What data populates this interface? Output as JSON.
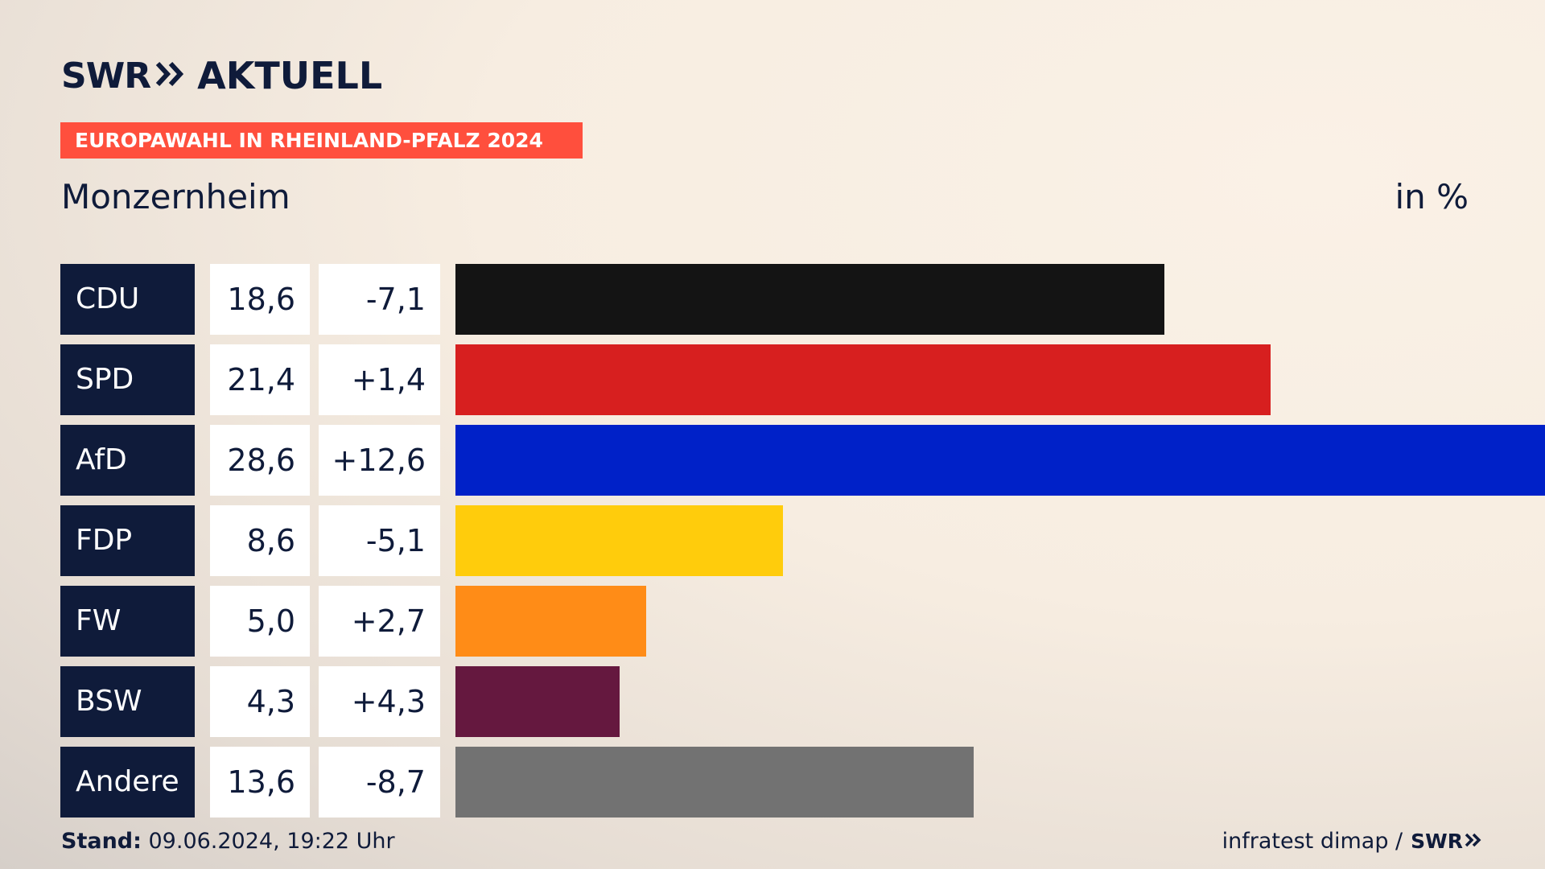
{
  "header": {
    "brand": "SWR",
    "section": "AKTUELL",
    "banner": "EUROPAWAHL IN RHEINLAND-PFALZ 2024",
    "place": "Monzernheim",
    "unit": "in %"
  },
  "colors": {
    "navy": "#0f1b3a",
    "banner": "#ff4f3d"
  },
  "chart_data": {
    "type": "bar",
    "orientation": "horizontal",
    "title": "Monzernheim",
    "unit": "in %",
    "categories": [
      "CDU",
      "SPD",
      "AfD",
      "FDP",
      "FW",
      "BSW",
      "Andere"
    ],
    "values": [
      18.6,
      21.4,
      28.6,
      8.6,
      5.0,
      4.3,
      13.6
    ],
    "value_labels": [
      "18,6",
      "21,4",
      "28,6",
      "8,6",
      "5,0",
      "4,3",
      "13,6"
    ],
    "changes": [
      -7.1,
      1.4,
      12.6,
      -5.1,
      2.7,
      4.3,
      -8.7
    ],
    "change_labels": [
      "-7,1",
      "+1,4",
      "+12,6",
      "-5,1",
      "+2,7",
      "+4,3",
      "-8,7"
    ],
    "bar_colors": [
      "#141414",
      "#d71f1f",
      "#0021c8",
      "#ffcc0c",
      "#ff8c17",
      "#65183f",
      "#727272"
    ],
    "xlim": [
      0,
      28.6
    ],
    "grid": false
  },
  "footer": {
    "stand_label": "Stand:",
    "stand_value": " 09.06.2024, 19:22 Uhr",
    "source": "infratest dimap /",
    "source_brand": "SWR"
  }
}
